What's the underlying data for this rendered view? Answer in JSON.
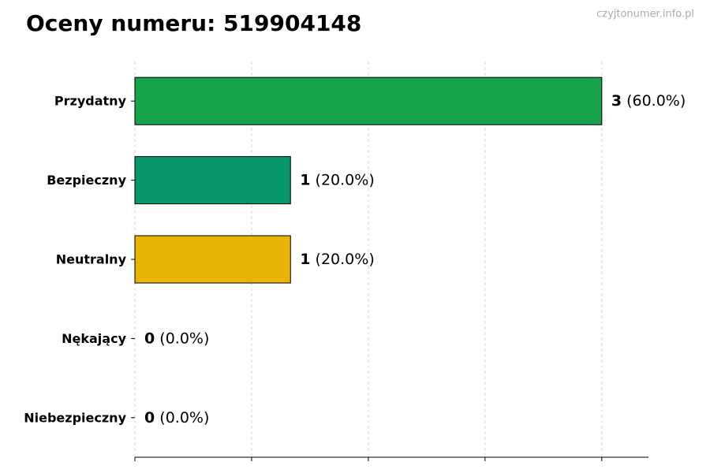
{
  "chart_data": {
    "type": "hbar",
    "title": "Oceny numeru: 519904148",
    "watermark": "czyjtonumer.info.pl",
    "categories": [
      "Przydatny",
      "Bezpieczny",
      "Neutralny",
      "Nękający",
      "Niebezpieczny"
    ],
    "values": [
      3,
      1,
      1,
      0,
      0
    ],
    "colors": [
      "#16a34a",
      "#059669",
      "#eab308",
      "#f97316",
      "#dc2626"
    ],
    "percentages": [
      60,
      20,
      20,
      0,
      0
    ],
    "percentage_labels": [
      "(60.0%)",
      "(20.0%)",
      "(20.0%)",
      "(0.0%)",
      "(0.0%)"
    ],
    "xlim": [
      0,
      3.3
    ],
    "xticks": [
      0,
      0.75,
      1.5,
      2.25,
      3
    ],
    "grid": true
  }
}
